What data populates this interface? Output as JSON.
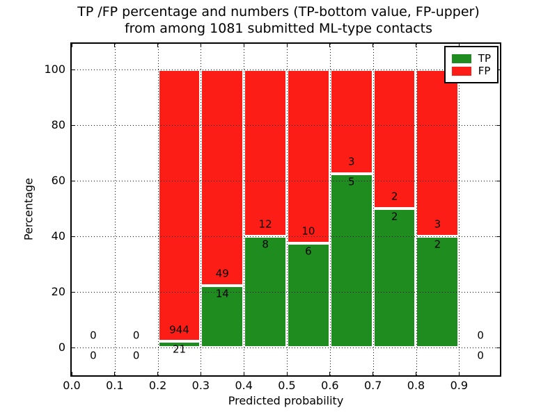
{
  "title_lines": [
    "TP /FP percentage and numbers (TP-bottom value, FP-upper)",
    "from among 1081 submitted ML-type contacts"
  ],
  "chart_data": {
    "type": "bar",
    "stacked": true,
    "units": "percent of bin total",
    "title": "TP /FP percentage and numbers (TP-bottom value, FP-upper)\nfrom among 1081 submitted ML-type contacts",
    "xlabel": "Predicted probability",
    "ylabel": "Percentage",
    "xlim": [
      0,
      0.995
    ],
    "ylim": [
      -10,
      109.25
    ],
    "grid": true,
    "xtick_values": [
      0.0,
      0.1,
      0.2,
      0.3,
      0.4,
      0.5,
      0.6,
      0.7,
      0.8,
      0.9
    ],
    "xtick_labels": [
      "0.0",
      "0.1",
      "0.2",
      "0.3",
      "0.4",
      "0.5",
      "0.6",
      "0.7",
      "0.8",
      "0.9"
    ],
    "ytick_values": [
      0,
      20,
      40,
      60,
      80,
      100
    ],
    "ytick_labels": [
      "0",
      "20",
      "40",
      "60",
      "80",
      "100"
    ],
    "bins": [
      {
        "x0": 0.0,
        "x1": 0.1,
        "tp": 0,
        "fp": 0
      },
      {
        "x0": 0.1,
        "x1": 0.2,
        "tp": 0,
        "fp": 0
      },
      {
        "x0": 0.2,
        "x1": 0.3,
        "tp": 21,
        "fp": 944
      },
      {
        "x0": 0.3,
        "x1": 0.4,
        "tp": 14,
        "fp": 49
      },
      {
        "x0": 0.4,
        "x1": 0.5,
        "tp": 8,
        "fp": 12
      },
      {
        "x0": 0.5,
        "x1": 0.6,
        "tp": 6,
        "fp": 10
      },
      {
        "x0": 0.6,
        "x1": 0.7,
        "tp": 5,
        "fp": 3
      },
      {
        "x0": 0.7,
        "x1": 0.8,
        "tp": 2,
        "fp": 2
      },
      {
        "x0": 0.8,
        "x1": 0.9,
        "tp": 2,
        "fp": 3
      },
      {
        "x0": 0.9,
        "x1": 1.0,
        "tp": 0,
        "fp": 0
      }
    ],
    "colors": {
      "tp": "#1e8c1e",
      "fp": "#fc1e16",
      "bar_edge": "#ffffff",
      "grid": "#000000"
    },
    "legend": {
      "position": "upper right",
      "entries": [
        {
          "label": "TP",
          "color": "#1e8c1e"
        },
        {
          "label": "FP",
          "color": "#fc1e16"
        }
      ]
    }
  }
}
